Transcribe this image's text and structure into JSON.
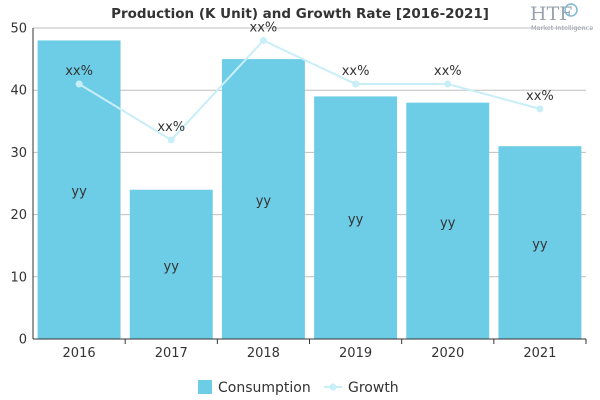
{
  "logo": {
    "main": "HTF",
    "sub": "Market Intelligence"
  },
  "chart_data": {
    "type": "bar",
    "title": "Production (K Unit) and Growth Rate [2016-2021]",
    "categories": [
      "2016",
      "2017",
      "2018",
      "2019",
      "2020",
      "2021"
    ],
    "ylim": [
      0,
      50
    ],
    "yticks": [
      0,
      10,
      20,
      30,
      40,
      50
    ],
    "grid": true,
    "legend_position": "bottom",
    "series": [
      {
        "name": "Consumption",
        "type": "bar",
        "color": "#6dcde6",
        "values": [
          48,
          24,
          45,
          39,
          38,
          31
        ],
        "labels": [
          "yy",
          "yy",
          "yy",
          "yy",
          "yy",
          "yy"
        ]
      },
      {
        "name": "Growth",
        "type": "line",
        "color": "#c8eef8",
        "values": [
          41,
          32,
          48,
          41,
          41,
          37
        ],
        "labels": [
          "xx%",
          "xx%",
          "xx%",
          "xx%",
          "xx%",
          "xx%"
        ]
      }
    ]
  }
}
